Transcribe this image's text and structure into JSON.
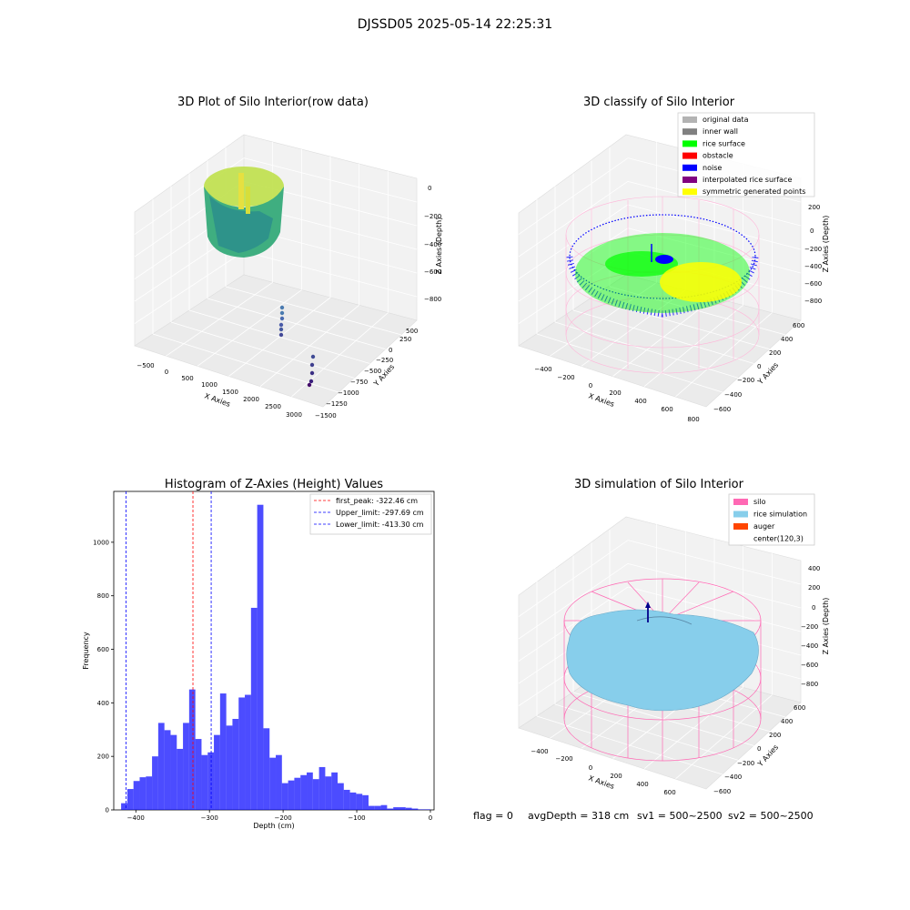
{
  "figure": {
    "suptitle": "DJSSD05 2025-05-14 22:25:31",
    "footer": {
      "flag": "flag = 0",
      "avg_depth": "avgDepth = 318 cm",
      "sv1": "sv1 = 500~2500",
      "sv2": "sv2 = 500~2500"
    }
  },
  "panels": {
    "raw": {
      "title": "3D Plot of Silo Interior(row data)",
      "xlabel": "X Axies",
      "ylabel": "Y Axies",
      "zlabel": "Z Axies (Depth)",
      "xticks": [
        "−500",
        "0",
        "500",
        "1000",
        "1500",
        "2000",
        "2500",
        "3000"
      ],
      "yticks": [
        "500",
        "250",
        "0",
        "−250",
        "−500",
        "−750",
        "−1000",
        "−1250",
        "−1500"
      ],
      "zticks": [
        "0",
        "−200",
        "−400",
        "−600",
        "−800"
      ]
    },
    "classify": {
      "title": "3D classify of Silo Interior",
      "xlabel": "X Axies",
      "ylabel": "Y Axies",
      "zlabel": "Z Axies (Depth)",
      "xticks": [
        "−400",
        "−200",
        "0",
        "200",
        "400",
        "600",
        "800"
      ],
      "yticks": [
        "600",
        "400",
        "200",
        "0",
        "−200",
        "−400",
        "−600"
      ],
      "zticks": [
        "200",
        "0",
        "−200",
        "−400",
        "−600",
        "−800"
      ],
      "legend": [
        {
          "label": "original data",
          "color": "#b3b3b3"
        },
        {
          "label": "inner wall",
          "color": "#808080"
        },
        {
          "label": "rice surface",
          "color": "#00ff00"
        },
        {
          "label": "obstacle",
          "color": "#ff0000"
        },
        {
          "label": "noise",
          "color": "#0000ff"
        },
        {
          "label": "interpolated rice surface",
          "color": "#800080"
        },
        {
          "label": "symmetric generated points",
          "color": "#ffff00"
        }
      ]
    },
    "simulation": {
      "title": "3D simulation of Silo Interior",
      "xlabel": "X Axies",
      "ylabel": "Y Axies",
      "zlabel": "Z Axies (Depth)",
      "xticks": [
        "−400",
        "−200",
        "0",
        "200",
        "400",
        "600"
      ],
      "yticks": [
        "600",
        "400",
        "200",
        "0",
        "−200",
        "−400",
        "−600"
      ],
      "zticks": [
        "400",
        "200",
        "0",
        "−200",
        "−400",
        "−600",
        "−800"
      ],
      "legend": [
        {
          "label": "silo",
          "color": "#ff69b4"
        },
        {
          "label": "rice simulation",
          "color": "#87ceeb"
        },
        {
          "label": "auger",
          "color": "#ff4500"
        },
        {
          "label": "center(120,3)",
          "color": ""
        }
      ]
    }
  },
  "chart_data": {
    "type": "bar",
    "title": "Histogram of Z-Axies (Height) Values",
    "xlabel": "Depth (cm)",
    "ylabel": "Frequency",
    "xlim": [
      -430,
      5
    ],
    "ylim": [
      0,
      1190
    ],
    "xticks": [
      -400,
      -300,
      -200,
      -100,
      0
    ],
    "yticks": [
      0,
      200,
      400,
      600,
      800,
      1000
    ],
    "bar_color": "#0000ff",
    "bin_start": -420,
    "bin_width": 8.4,
    "values": [
      25,
      78,
      108,
      122,
      125,
      200,
      325,
      298,
      280,
      228,
      325,
      450,
      265,
      205,
      215,
      280,
      435,
      315,
      340,
      420,
      430,
      755,
      1140,
      305,
      195,
      205,
      100,
      110,
      120,
      130,
      140,
      115,
      160,
      125,
      140,
      100,
      75,
      65,
      60,
      55,
      15,
      15,
      18,
      5,
      10,
      10,
      8,
      5,
      2,
      2
    ],
    "lines": [
      {
        "label": "first_peak: -322.46 cm",
        "x": -322.46,
        "color": "#ff0000"
      },
      {
        "label": "Upper_limit: -297.69 cm",
        "x": -297.69,
        "color": "#0000ff"
      },
      {
        "label": "Lower_limit: -413.30 cm",
        "x": -413.3,
        "color": "#0000ff"
      }
    ]
  }
}
